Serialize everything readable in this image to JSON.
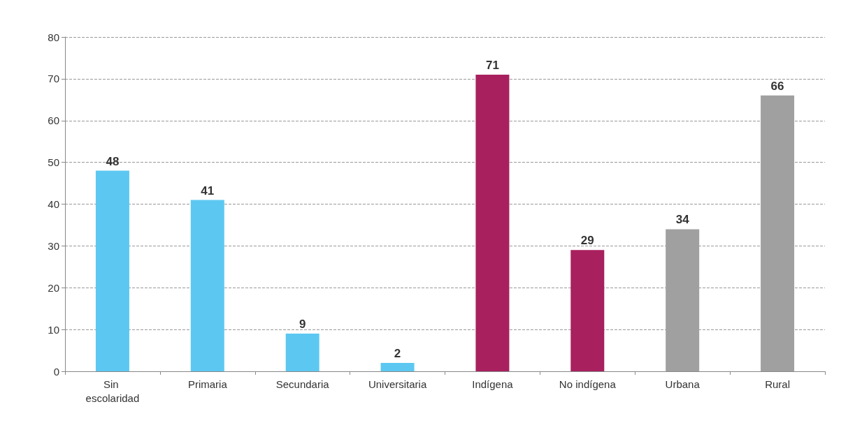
{
  "chart_data": {
    "type": "bar",
    "categories": [
      "Sin escolaridad",
      "Primaria",
      "Secundaria",
      "Universitaria",
      "Indígena",
      "No indígena",
      "Urbana",
      "Rural"
    ],
    "values": [
      48,
      41,
      9,
      2,
      71,
      29,
      34,
      66
    ],
    "colors": [
      "#5cc8f2",
      "#5cc8f2",
      "#5cc8f2",
      "#5cc8f2",
      "#a8205e",
      "#a8205e",
      "#a0a0a0",
      "#a0a0a0"
    ],
    "ylim": [
      0,
      80
    ],
    "yticks": [
      0,
      10,
      20,
      30,
      40,
      50,
      60,
      70,
      80
    ],
    "grid": "y",
    "data_labels": true
  }
}
